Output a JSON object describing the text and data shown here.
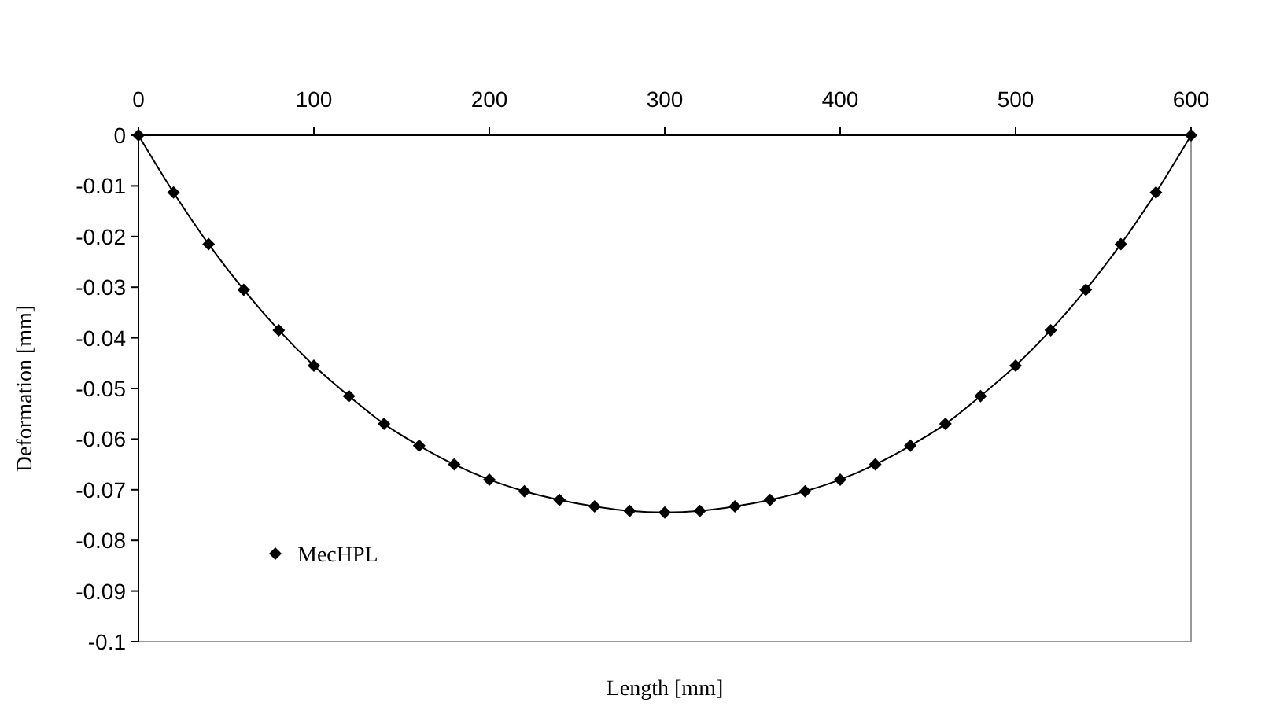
{
  "chart_data": {
    "type": "line",
    "xlabel": "Length [mm]",
    "ylabel": "Deformation [mm]",
    "x": [
      0,
      20,
      40,
      60,
      80,
      100,
      120,
      140,
      160,
      180,
      200,
      220,
      240,
      260,
      280,
      300,
      320,
      340,
      360,
      380,
      400,
      420,
      440,
      460,
      480,
      500,
      520,
      540,
      560,
      580,
      600
    ],
    "series": [
      {
        "type": "scatter",
        "name": "MecHPL",
        "color": "#000000",
        "marker": "diamond",
        "values": [
          0,
          -0.0113,
          -0.0215,
          -0.0305,
          -0.0385,
          -0.0455,
          -0.0515,
          -0.057,
          -0.0613,
          -0.065,
          -0.068,
          -0.0703,
          -0.072,
          -0.0733,
          -0.0742,
          -0.0745,
          -0.0742,
          -0.0733,
          -0.072,
          -0.0703,
          -0.068,
          -0.065,
          -0.0613,
          -0.057,
          -0.0515,
          -0.0455,
          -0.0385,
          -0.0305,
          -0.0215,
          -0.0113,
          0
        ]
      },
      {
        "color": "#000000",
        "line_style": "solid",
        "values": [
          0,
          -0.0113,
          -0.0215,
          -0.0305,
          -0.0385,
          -0.0455,
          -0.0515,
          -0.057,
          -0.0613,
          -0.065,
          -0.068,
          -0.0703,
          -0.072,
          -0.0733,
          -0.0742,
          -0.0745,
          -0.0742,
          -0.0733,
          -0.072,
          -0.0703,
          -0.068,
          -0.065,
          -0.0613,
          -0.057,
          -0.0515,
          -0.0455,
          -0.0385,
          -0.0305,
          -0.0215,
          -0.0113,
          0
        ]
      }
    ],
    "xlim": [
      0,
      600
    ],
    "xticks": [
      0,
      100,
      200,
      300,
      400,
      500,
      600
    ],
    "ylim": [
      -0.1,
      0
    ],
    "yticks": [
      -0.1,
      -0.09,
      -0.08,
      -0.07,
      -0.06,
      -0.05,
      -0.04,
      -0.03,
      -0.02,
      -0.01,
      0
    ],
    "grid": false,
    "legend": "bottom left"
  }
}
